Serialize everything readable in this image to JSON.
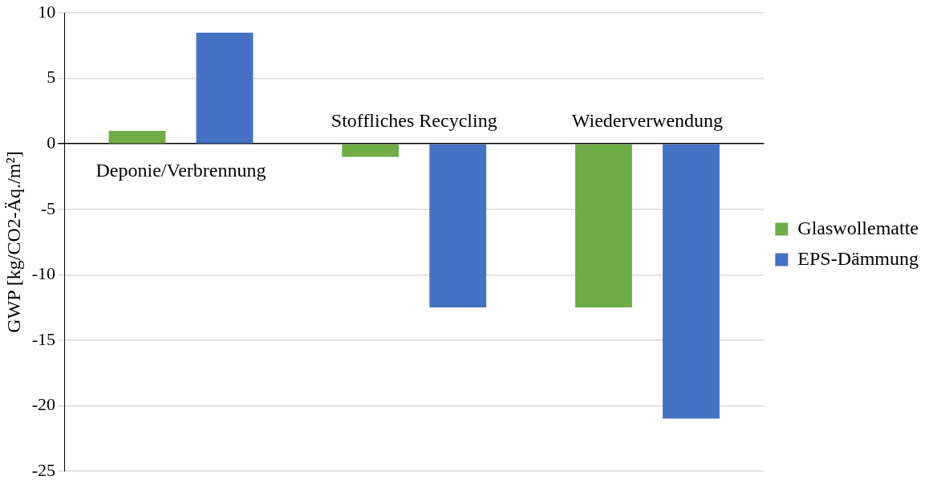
{
  "chart_data": {
    "type": "bar",
    "ylabel": "GWP [kg/CO2-Äq./m²]",
    "categories": [
      "Deponie/Verbrennung",
      "Stoffliches Recycling",
      "Wiederverwendung"
    ],
    "series": [
      {
        "name": "Glaswollematte",
        "color": "#70ad47",
        "values": [
          1,
          -1,
          -12.5
        ]
      },
      {
        "name": "EPS-Dämmung",
        "color": "#4472c4",
        "values": [
          8.5,
          -12.5,
          -21
        ]
      }
    ],
    "ylim": [
      -25,
      10
    ],
    "yticks": [
      -25,
      -20,
      -15,
      -10,
      -5,
      0,
      5,
      10
    ],
    "grid": "y",
    "legend": "right"
  }
}
